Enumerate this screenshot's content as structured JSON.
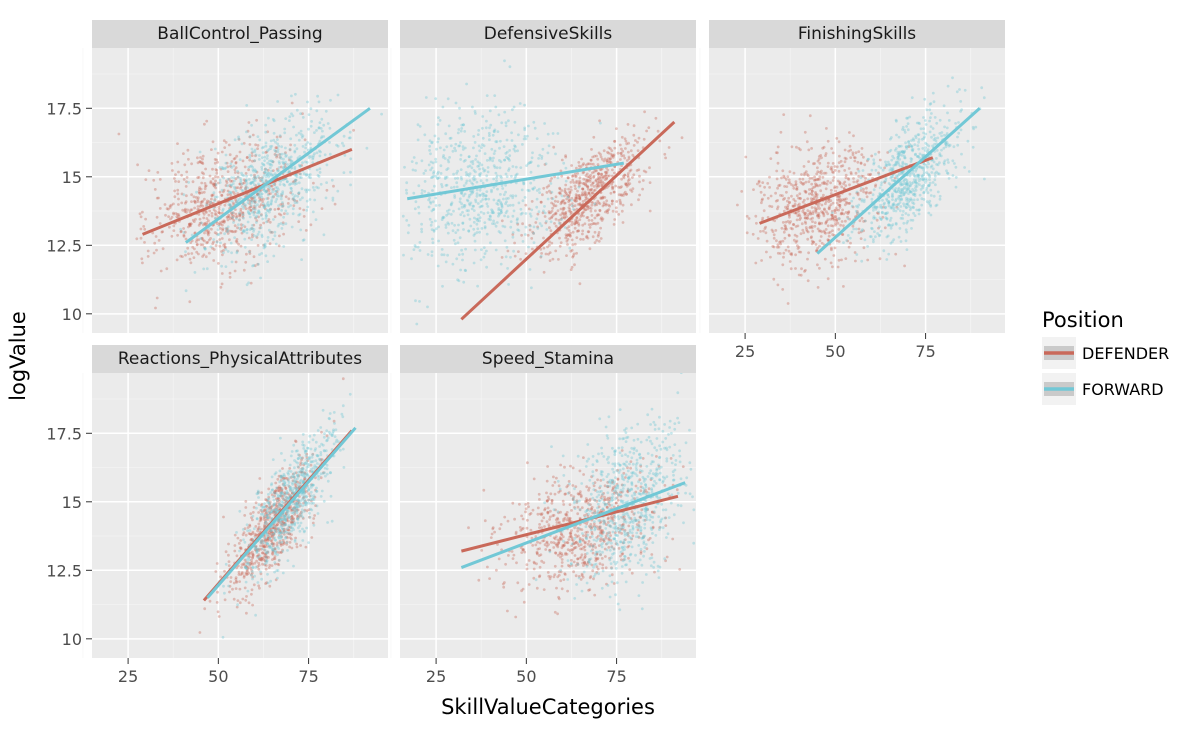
{
  "chart_data": {
    "type": "scatter",
    "xlabel": "SkillValueCategories",
    "ylabel": "logValue",
    "xlim": [
      15,
      97
    ],
    "ylim": [
      9.3,
      19.7
    ],
    "x_ticks": [
      25,
      50,
      75
    ],
    "y_ticks": [
      10,
      12.5,
      15,
      17.5
    ],
    "y_tick_labels": [
      "10",
      "12.5",
      "15",
      "17.5"
    ],
    "grid": true,
    "legend": {
      "title": "Position",
      "placement": "right",
      "entries": [
        {
          "name": "DEFENDER",
          "color": "#c9695a"
        },
        {
          "name": "FORWARD",
          "color": "#72c8d6"
        }
      ]
    },
    "panels": [
      {
        "title": "BallControl_Passing",
        "series": [
          {
            "name": "DEFENDER",
            "cx": 52,
            "sx": 10,
            "cy": 14.0,
            "sy": 1.2,
            "rho": 0.3,
            "line": [
              [
                29,
                12.9
              ],
              [
                87,
                16.0
              ]
            ]
          },
          {
            "name": "FORWARD",
            "cx": 65,
            "sx": 9,
            "cy": 14.8,
            "sy": 1.3,
            "rho": 0.5,
            "line": [
              [
                41,
                12.6
              ],
              [
                92,
                17.5
              ]
            ]
          }
        ]
      },
      {
        "title": "DefensiveSkills",
        "series": [
          {
            "name": "DEFENDER",
            "cx": 67,
            "sx": 8,
            "cy": 14.3,
            "sy": 1.1,
            "rho": 0.65,
            "line": [
              [
                32,
                9.8
              ],
              [
                91,
                17.0
              ]
            ]
          },
          {
            "name": "FORWARD",
            "cx": 37,
            "sx": 11,
            "cy": 14.5,
            "sy": 1.5,
            "rho": 0.1,
            "line": [
              [
                17,
                14.2
              ],
              [
                77,
                15.5
              ]
            ]
          }
        ]
      },
      {
        "title": "FinishingSkills",
        "series": [
          {
            "name": "DEFENDER",
            "cx": 45,
            "sx": 9,
            "cy": 14.0,
            "sy": 1.1,
            "rho": 0.25,
            "line": [
              [
                29,
                13.3
              ],
              [
                77,
                15.7
              ]
            ]
          },
          {
            "name": "FORWARD",
            "cx": 70,
            "sx": 7,
            "cy": 15.0,
            "sy": 1.2,
            "rho": 0.6,
            "line": [
              [
                45,
                12.2
              ],
              [
                90,
                17.5
              ]
            ]
          }
        ]
      },
      {
        "title": "Reactions_PhysicalAttributes",
        "series": [
          {
            "name": "DEFENDER",
            "cx": 65,
            "sx": 6,
            "cy": 14.1,
            "sy": 1.2,
            "rho": 0.75,
            "line": [
              [
                46,
                11.4
              ],
              [
                87,
                17.6
              ]
            ]
          },
          {
            "name": "FORWARD",
            "cx": 70,
            "sx": 6,
            "cy": 15.0,
            "sy": 1.3,
            "rho": 0.75,
            "line": [
              [
                47,
                11.5
              ],
              [
                88,
                17.7
              ]
            ]
          }
        ]
      },
      {
        "title": "Speed_Stamina",
        "series": [
          {
            "name": "DEFENDER",
            "cx": 65,
            "sx": 11,
            "cy": 14.0,
            "sy": 1.1,
            "rho": 0.3,
            "line": [
              [
                32,
                13.2
              ],
              [
                92,
                15.2
              ]
            ]
          },
          {
            "name": "FORWARD",
            "cx": 78,
            "sx": 8,
            "cy": 15.0,
            "sy": 1.4,
            "rho": 0.3,
            "line": [
              [
                32,
                12.6
              ],
              [
                94,
                15.7
              ]
            ]
          }
        ]
      }
    ]
  }
}
